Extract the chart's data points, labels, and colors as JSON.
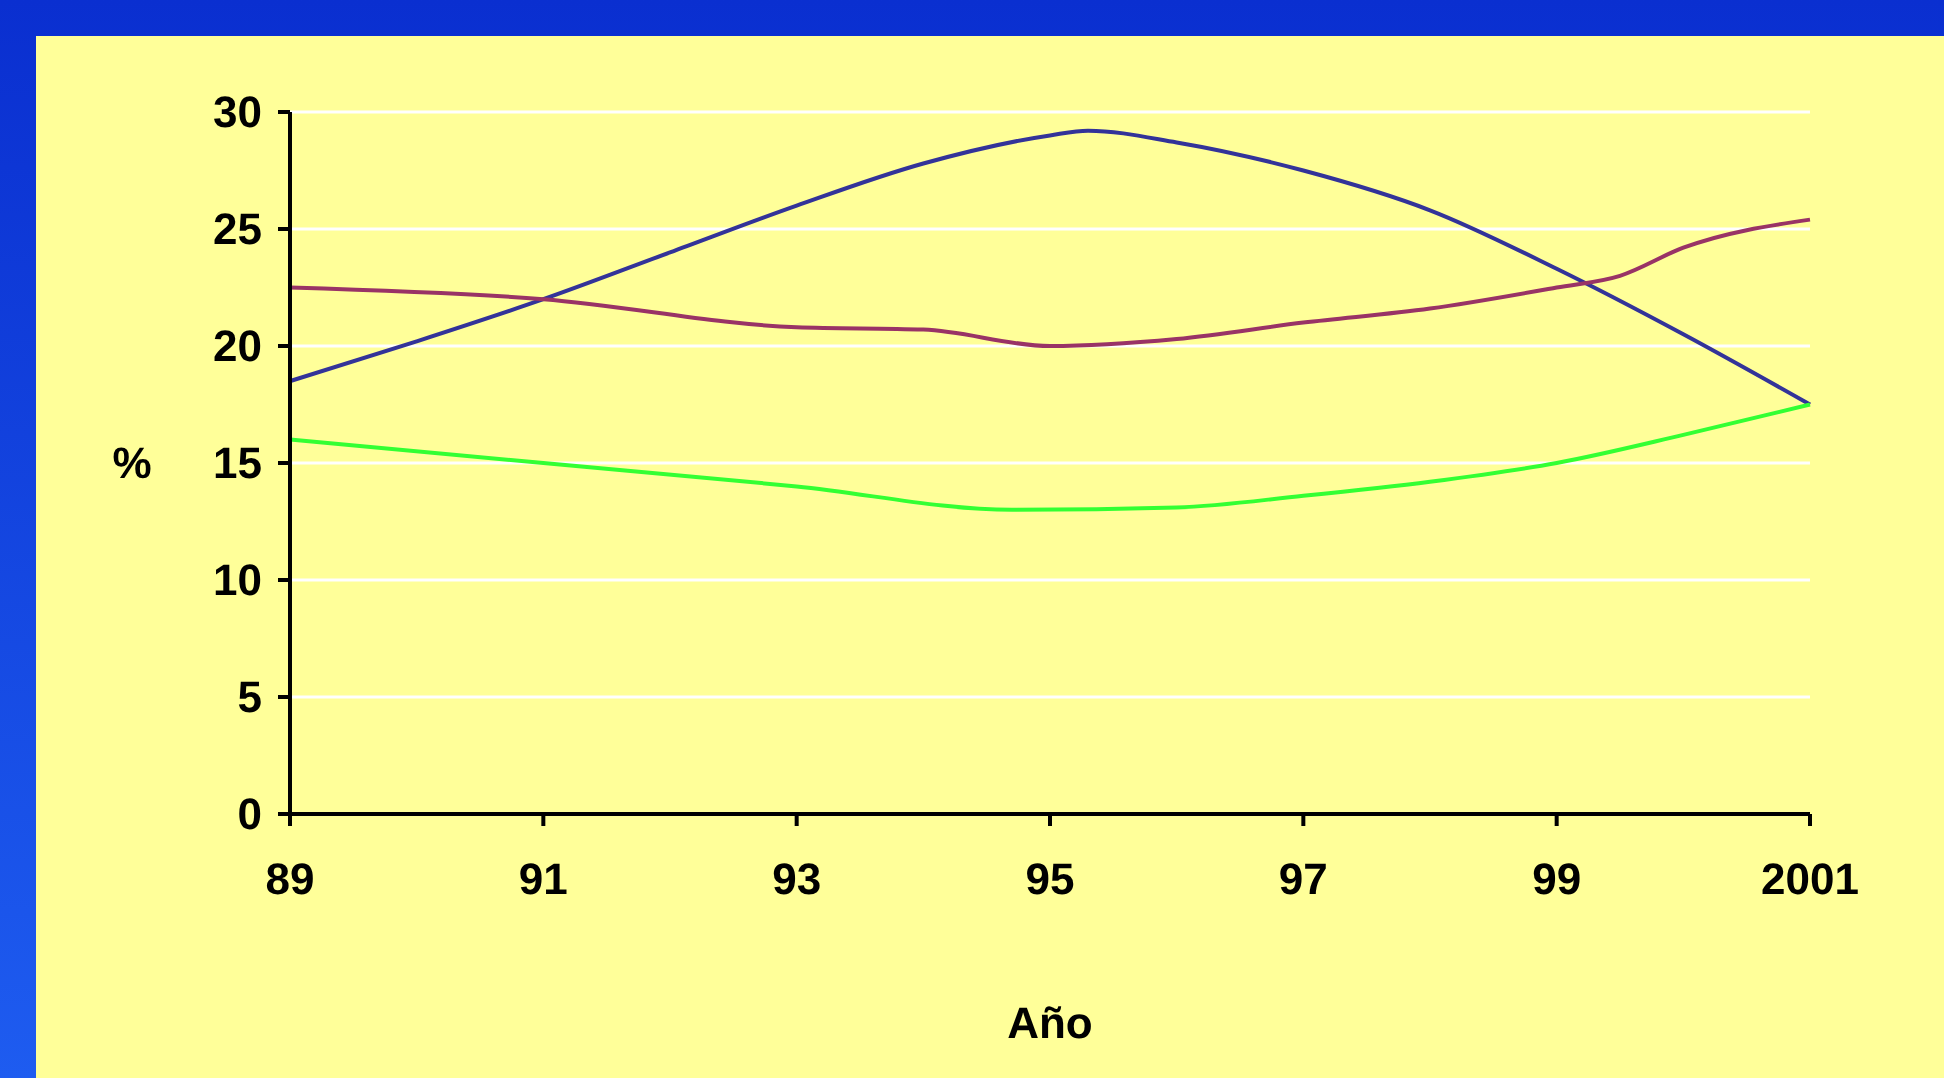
{
  "chart_data": {
    "type": "line",
    "xlabel": "Año",
    "ylabel": "%",
    "xlim": [
      1989,
      2001
    ],
    "xticks": [
      {
        "value": 1989,
        "label": "89"
      },
      {
        "value": 1991,
        "label": "91"
      },
      {
        "value": 1993,
        "label": "93"
      },
      {
        "value": 1995,
        "label": "95"
      },
      {
        "value": 1997,
        "label": "97"
      },
      {
        "value": 1999,
        "label": "99"
      },
      {
        "value": 2001,
        "label": "2001"
      }
    ],
    "ylim": [
      0,
      30
    ],
    "yticks": [
      0,
      5,
      10,
      15,
      20,
      25,
      30
    ],
    "grid": "y",
    "marker": "none",
    "line_style": "solid",
    "series": [
      {
        "color": "#333399",
        "x": [
          1989,
          1990,
          1991,
          1992,
          1993,
          1994,
          1995,
          1995.3,
          1996,
          1997,
          1998,
          1999,
          2000,
          2001
        ],
        "values": [
          18.5,
          20.2,
          22,
          24,
          26,
          27.8,
          29,
          29.2,
          28.7,
          27.5,
          25.8,
          23.3,
          20.5,
          17.5
        ]
      },
      {
        "color": "#993366",
        "x": [
          1989,
          1991,
          1993,
          1994,
          1995,
          1996,
          1997,
          1998,
          1999,
          1999.5,
          2000,
          2001
        ],
        "values": [
          22.5,
          22,
          20.8,
          20.7,
          20,
          20.3,
          21,
          21.6,
          22.5,
          23,
          24.2,
          25.4
        ]
      },
      {
        "color": "#33ff33",
        "x": [
          1989,
          1991,
          1993,
          1994.7,
          1996,
          1997,
          1998,
          1999,
          2000,
          2001
        ],
        "values": [
          16,
          15,
          14,
          13,
          13.1,
          13.6,
          14.2,
          15,
          16.2,
          17.5
        ]
      }
    ]
  }
}
